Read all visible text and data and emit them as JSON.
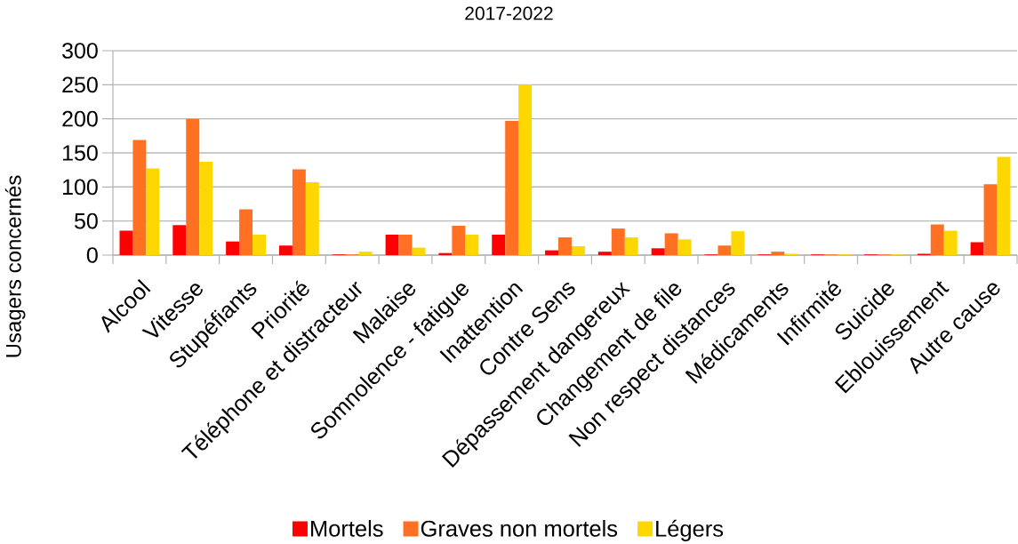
{
  "chart_data": {
    "type": "bar",
    "title": "2017-2022",
    "ylabel": "Usagers concernés",
    "categories": [
      "Alcool",
      "Vitesse",
      "Stupéfiants",
      "Priorité",
      "Téléphone et distracteur",
      "Malaise",
      "Somnolence - fatigue",
      "Inattention",
      "Contre Sens",
      "Dépassement dangereux",
      "Changement de file",
      "Non respect distances",
      "Médicaments",
      "Infirmité",
      "Suicide",
      "Eblouissement",
      "Autre cause"
    ],
    "series": [
      {
        "name": "Mortels",
        "color": "#ff0000",
        "values": [
          36,
          44,
          20,
          14,
          1,
          30,
          3,
          30,
          7,
          5,
          10,
          1,
          1,
          1,
          1,
          2,
          19
        ]
      },
      {
        "name": "Graves non mortels",
        "color": "#ff7022",
        "values": [
          169,
          200,
          67,
          126,
          1,
          30,
          43,
          197,
          26,
          39,
          32,
          14,
          5,
          1,
          1,
          45,
          104
        ]
      },
      {
        "name": "Légers",
        "color": "#ffd700",
        "values": [
          127,
          137,
          30,
          107,
          5,
          11,
          30,
          250,
          13,
          26,
          23,
          35,
          2,
          1,
          1,
          36,
          144
        ]
      }
    ],
    "ylim": [
      0,
      300
    ],
    "yticks": [
      0,
      50,
      100,
      150,
      200,
      250,
      300
    ],
    "grid": "y",
    "legend": "bottom"
  }
}
